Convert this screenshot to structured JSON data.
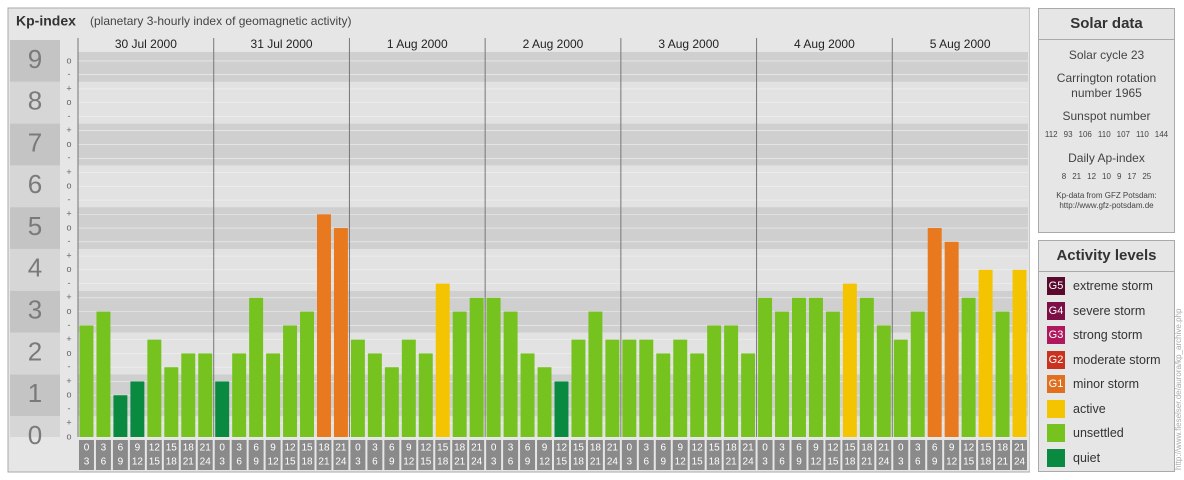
{
  "chart_data": {
    "type": "bar",
    "title": "Kp-index",
    "subtitle": "(planetary 3-hourly index of geomagnetic activity)",
    "categories": [
      "30 Jul 2000",
      "31 Jul 2000",
      "1 Aug 2000",
      "2 Aug 2000",
      "3 Aug 2000",
      "4 Aug 2000",
      "5 Aug 2000"
    ],
    "hour_labels": [
      [
        "0",
        "3"
      ],
      [
        "3",
        "6"
      ],
      [
        "6",
        "9"
      ],
      [
        "9",
        "12"
      ],
      [
        "12",
        "15"
      ],
      [
        "15",
        "18"
      ],
      [
        "18",
        "21"
      ],
      [
        "21",
        "24"
      ]
    ],
    "values": [
      [
        2.67,
        3,
        1,
        1.33,
        2.33,
        1.67,
        2,
        2
      ],
      [
        1.33,
        2,
        3.33,
        2,
        2.67,
        3,
        5.33,
        5
      ],
      [
        2.33,
        2,
        1.67,
        2.33,
        2,
        3.67,
        3,
        3.33
      ],
      [
        3.33,
        3,
        2,
        1.67,
        1.33,
        2.33,
        3,
        2.33
      ],
      [
        2.33,
        2.33,
        2,
        2.33,
        2,
        2.67,
        2.67,
        2
      ],
      [
        3.33,
        3,
        3.33,
        3.33,
        3,
        3.67,
        3.33,
        2.67
      ],
      [
        2.33,
        3,
        5,
        4.67,
        3.33,
        4,
        3,
        4
      ]
    ],
    "colors": [
      [
        "#76c21e",
        "#76c21e",
        "#0a8a40",
        "#0a8a40",
        "#76c21e",
        "#76c21e",
        "#76c21e",
        "#76c21e"
      ],
      [
        "#0a8a40",
        "#76c21e",
        "#76c21e",
        "#76c21e",
        "#76c21e",
        "#76c21e",
        "#e8791e",
        "#e8791e"
      ],
      [
        "#76c21e",
        "#76c21e",
        "#76c21e",
        "#76c21e",
        "#76c21e",
        "#f5c400",
        "#76c21e",
        "#76c21e"
      ],
      [
        "#76c21e",
        "#76c21e",
        "#76c21e",
        "#76c21e",
        "#0a8a40",
        "#76c21e",
        "#76c21e",
        "#76c21e"
      ],
      [
        "#76c21e",
        "#76c21e",
        "#76c21e",
        "#76c21e",
        "#76c21e",
        "#76c21e",
        "#76c21e",
        "#76c21e"
      ],
      [
        "#76c21e",
        "#76c21e",
        "#76c21e",
        "#76c21e",
        "#76c21e",
        "#f5c400",
        "#76c21e",
        "#76c21e"
      ],
      [
        "#76c21e",
        "#76c21e",
        "#e8791e",
        "#e8791e",
        "#76c21e",
        "#f5c400",
        "#76c21e",
        "#f5c400"
      ]
    ],
    "ylim": [
      0,
      9.5
    ],
    "yticks": [
      0,
      1,
      2,
      3,
      4,
      5,
      6,
      7,
      8,
      9
    ],
    "minor_ticks": [
      {
        "value": 9,
        "label": "o"
      },
      {
        "value": 8.67,
        "label": "-"
      },
      {
        "value": 8.33,
        "label": "+"
      },
      {
        "value": 8,
        "label": "o"
      },
      {
        "value": 7.67,
        "label": "-"
      },
      {
        "value": 7.33,
        "label": "+"
      },
      {
        "value": 7,
        "label": "o"
      },
      {
        "value": 6.67,
        "label": "-"
      },
      {
        "value": 6.33,
        "label": "+"
      },
      {
        "value": 6,
        "label": "o"
      },
      {
        "value": 5.67,
        "label": "-"
      },
      {
        "value": 5.33,
        "label": "+"
      },
      {
        "value": 5,
        "label": "o"
      },
      {
        "value": 4.67,
        "label": "-"
      },
      {
        "value": 4.33,
        "label": "+"
      },
      {
        "value": 4,
        "label": "o"
      },
      {
        "value": 3.67,
        "label": "-"
      },
      {
        "value": 3.33,
        "label": "+"
      },
      {
        "value": 3,
        "label": "o"
      },
      {
        "value": 2.67,
        "label": "-"
      },
      {
        "value": 2.33,
        "label": "+"
      },
      {
        "value": 2,
        "label": "o"
      },
      {
        "value": 1.67,
        "label": "-"
      },
      {
        "value": 1.33,
        "label": "+"
      },
      {
        "value": 1,
        "label": "o"
      },
      {
        "value": 0.67,
        "label": "-"
      },
      {
        "value": 0.33,
        "label": "+"
      },
      {
        "value": 0,
        "label": "o"
      }
    ]
  },
  "solar": {
    "title": "Solar data",
    "cycle": "Solar cycle 23",
    "carrington": "Carrington rotation number 1965",
    "sunspot_title": "Sunspot number",
    "sunspot": [
      112,
      93,
      106,
      110,
      107,
      110,
      144
    ],
    "ap_title": "Daily Ap-index",
    "ap": [
      8,
      21,
      12,
      10,
      9,
      17,
      25
    ],
    "source": "Kp-data from GFZ Potsdam:",
    "source_url": "http://www.gfz-potsdam.de"
  },
  "legend": {
    "title": "Activity levels",
    "items": [
      {
        "badge": "G5",
        "label": "extreme storm",
        "color": "#5a0a2c"
      },
      {
        "badge": "G4",
        "label": "severe storm",
        "color": "#7c1046"
      },
      {
        "badge": "G3",
        "label": "strong storm",
        "color": "#b0185e"
      },
      {
        "badge": "G2",
        "label": "moderate storm",
        "color": "#c8321e"
      },
      {
        "badge": "G1",
        "label": "minor storm",
        "color": "#e07020"
      },
      {
        "label": "active",
        "color": "#f5c400"
      },
      {
        "label": "unsettled",
        "color": "#76c21e"
      },
      {
        "label": "quiet",
        "color": "#0a8a40"
      }
    ]
  },
  "credit": "http://www.fieselser.de/aurora/kp_archive.php"
}
